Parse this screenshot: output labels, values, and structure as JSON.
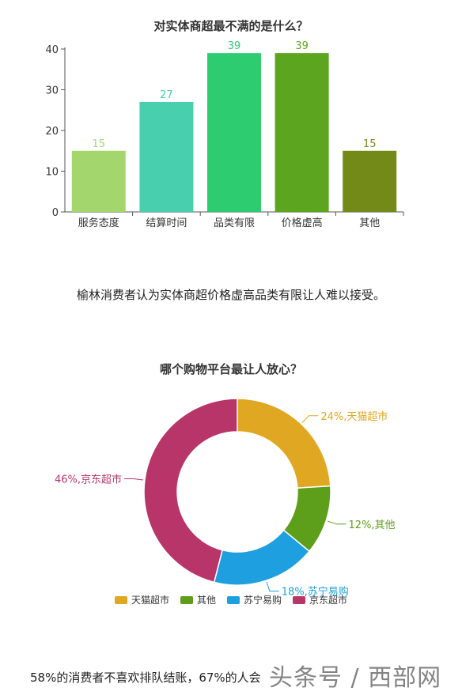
{
  "caption1": "榆林消费者认为实体商超价格虚高品类有限让人难以接受。",
  "footer_text": "58%的消费者不喜欢排队结账，67%的人会",
  "watermark": "头条号 / 西部网",
  "chart_data": [
    {
      "type": "bar",
      "title": "对实体商超最不满的是什么？",
      "categories": [
        "服务态度",
        "结算时间",
        "品类有限",
        "价格虚高",
        "其他"
      ],
      "values": [
        15,
        27,
        39,
        39,
        15
      ],
      "colors": [
        "#a3d76e",
        "#48cfad",
        "#2ecc71",
        "#5ba51f",
        "#738a18"
      ],
      "yticks": [
        0,
        10,
        20,
        30,
        40
      ],
      "ylim": [
        0,
        40
      ],
      "grid": false
    },
    {
      "type": "pie",
      "title": "哪个购物平台最让人放心？",
      "labels": [
        "天猫超市",
        "其他",
        "苏宁易购",
        "京东超市"
      ],
      "values": [
        24,
        12,
        18,
        46
      ],
      "slice_labels": [
        "24%,天猫超市",
        "12%,其他",
        "18%,苏宁易购",
        "46%,京东超市"
      ],
      "colors": [
        "#e0a822",
        "#5d9e1b",
        "#1e9fe0",
        "#b8356a"
      ],
      "legend_position": "bottom"
    }
  ]
}
